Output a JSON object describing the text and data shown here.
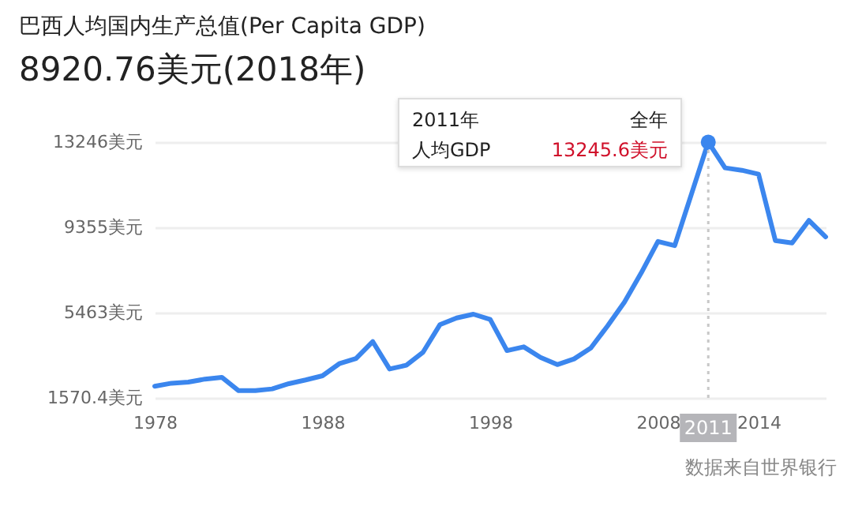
{
  "chart_data": {
    "type": "line",
    "title": "巴西人均国内生产总值(Per Capita GDP)",
    "subtitle": "8920.76美元(2018年)",
    "x": [
      1978,
      1979,
      1980,
      1981,
      1982,
      1983,
      1984,
      1985,
      1986,
      1987,
      1988,
      1989,
      1990,
      1991,
      1992,
      1993,
      1994,
      1995,
      1996,
      1997,
      1998,
      1999,
      2000,
      2001,
      2002,
      2003,
      2004,
      2005,
      2006,
      2007,
      2008,
      2009,
      2010,
      2011,
      2012,
      2013,
      2014,
      2015,
      2016,
      2017,
      2018
    ],
    "series": [
      {
        "color": "#3b86ee",
        "values": [
          2100,
          2240,
          2290,
          2430,
          2510,
          1900,
          1900,
          1980,
          2220,
          2390,
          2580,
          3130,
          3370,
          4140,
          2890,
          3060,
          3660,
          4910,
          5220,
          5390,
          5150,
          3730,
          3900,
          3420,
          3090,
          3350,
          3850,
          4860,
          5940,
          7270,
          8710,
          8520,
          10880,
          13245.6,
          12070,
          11960,
          11780,
          8750,
          8640,
          9670,
          8920.76
        ]
      }
    ],
    "xlim": [
      1978,
      2018
    ],
    "xticks": [
      1978,
      1988,
      1998,
      2008,
      2014
    ],
    "ylim": [
      1570.4,
      13246
    ],
    "yticks": [
      {
        "value": 1570.4,
        "label": "1570.4美元"
      },
      {
        "value": 5463,
        "label": "5463美元"
      },
      {
        "value": 9355,
        "label": "9355美元"
      },
      {
        "value": 13246,
        "label": "13246美元"
      }
    ],
    "grid": "y",
    "line_style": "solid",
    "ref_lines": [
      {
        "axis": "x",
        "value": 2011,
        "label": "2011",
        "line_style": "dotted",
        "color": "#c8c8c8"
      }
    ],
    "annotations": [
      "2011年",
      "全年",
      "人均GDP",
      "13245.6美元",
      "数据来自世界银行"
    ]
  }
}
